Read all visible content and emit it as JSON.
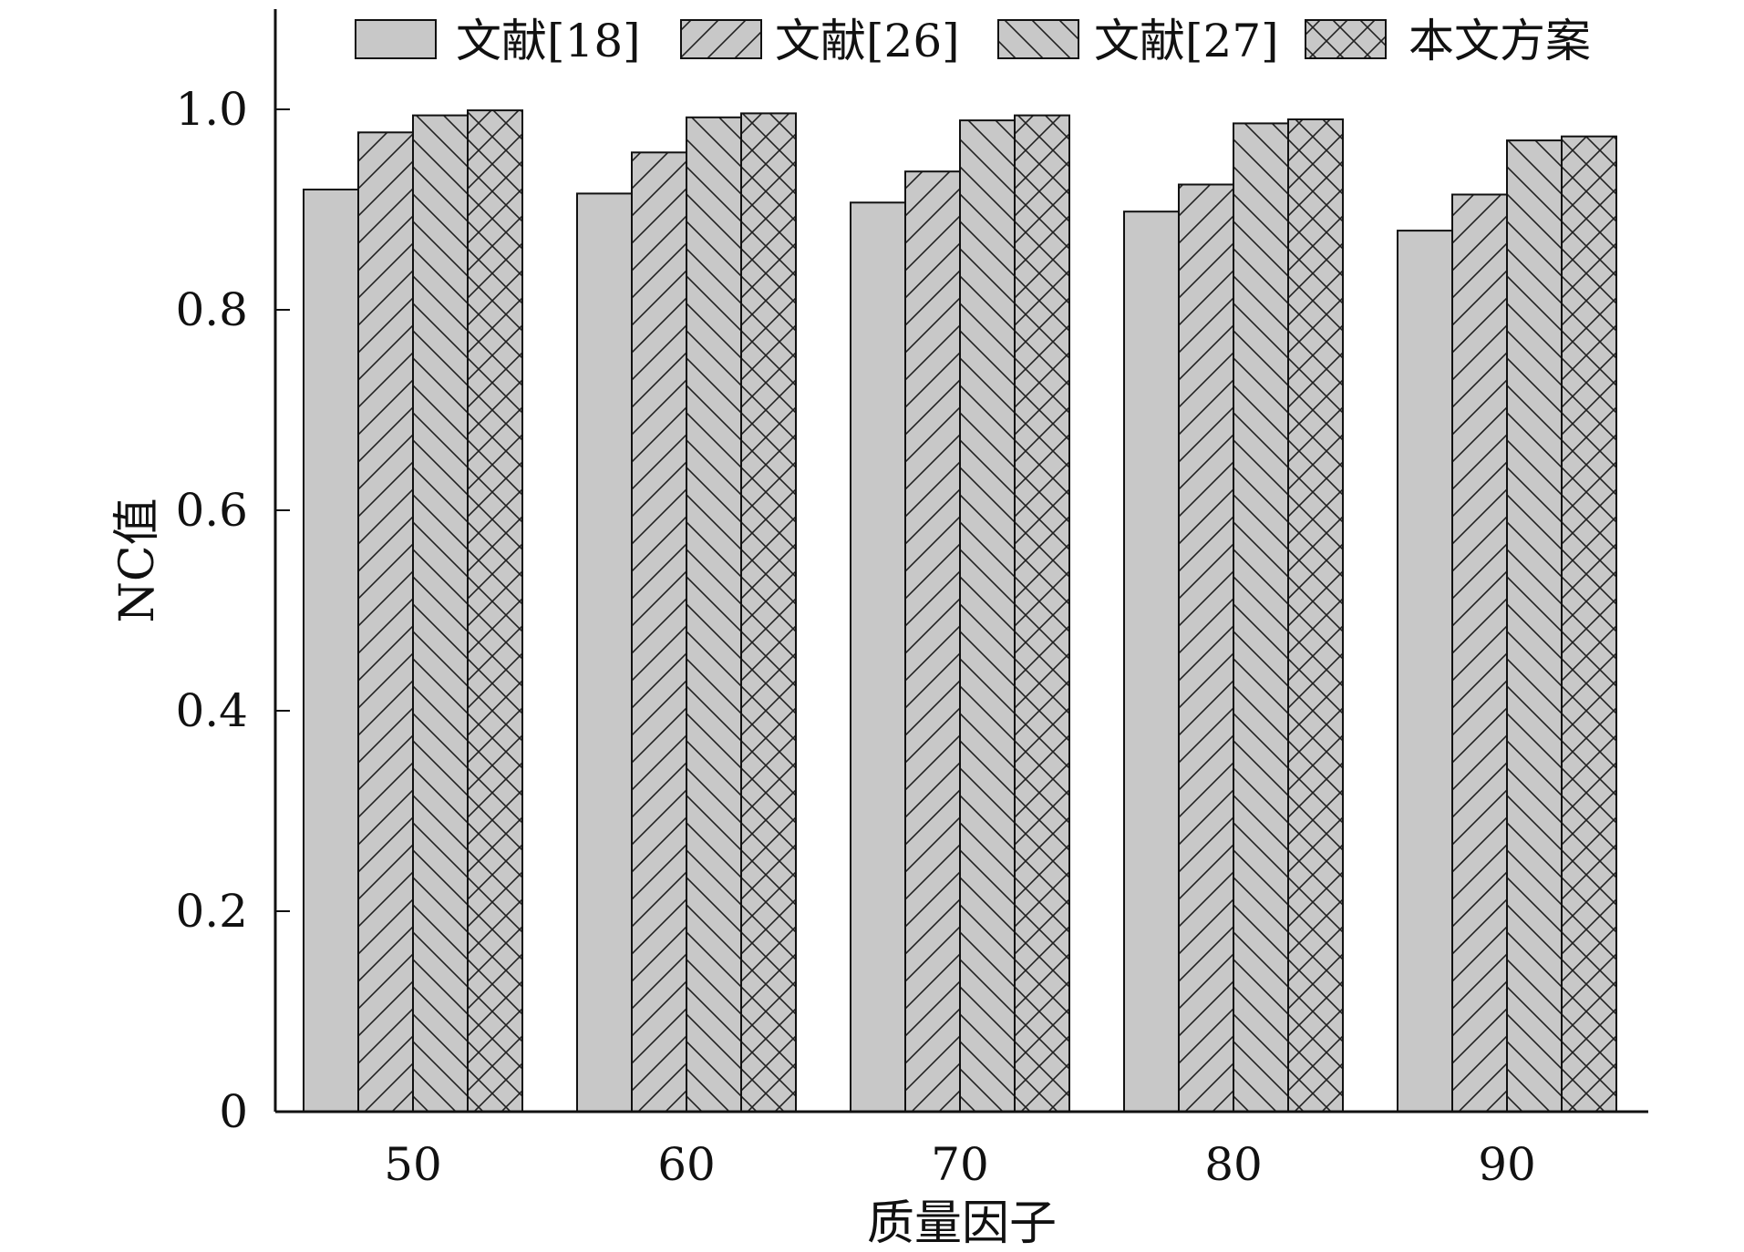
{
  "chart_data": {
    "type": "bar",
    "title": "",
    "xlabel": "质量因子",
    "ylabel": "NC值",
    "categories": [
      "50",
      "60",
      "70",
      "80",
      "90"
    ],
    "series": [
      {
        "name": "文献[18]",
        "values": [
          0.92,
          0.916,
          0.907,
          0.898,
          0.879
        ],
        "pattern": "solid"
      },
      {
        "name": "文献[26]",
        "values": [
          0.977,
          0.957,
          0.938,
          0.925,
          0.915
        ],
        "pattern": "forward-diagonal"
      },
      {
        "name": "文献[27]",
        "values": [
          0.994,
          0.992,
          0.989,
          0.986,
          0.969
        ],
        "pattern": "backward-diagonal"
      },
      {
        "name": "本文方案",
        "values": [
          0.999,
          0.996,
          0.994,
          0.99,
          0.973
        ],
        "pattern": "crosshatch"
      }
    ],
    "ylim": [
      0,
      1.1
    ],
    "yticks": [
      0,
      0.2,
      0.4,
      0.6,
      0.8,
      1.0
    ],
    "ytick_labels": [
      "0",
      "0.2",
      "0.4",
      "0.6",
      "0.8",
      "1.0"
    ],
    "legend_position": "top",
    "grid": false,
    "colors": {
      "bar_fill": "#c8c8c8",
      "hatch": "#222222",
      "axis": "#111111"
    }
  }
}
